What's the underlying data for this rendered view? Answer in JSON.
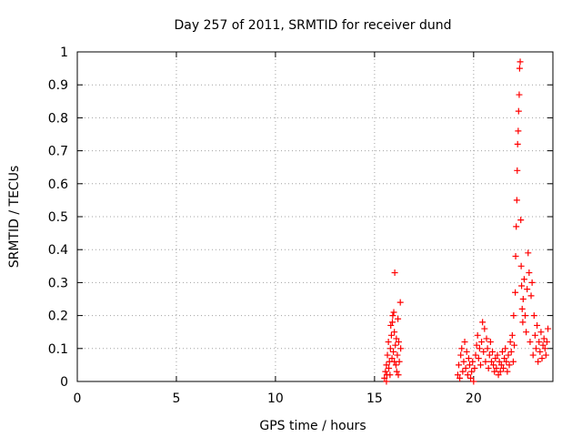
{
  "chart_data": {
    "type": "scatter",
    "title": "Day 257 of 2011, SRMTID for receiver dund",
    "xlabel": "GPS time / hours",
    "ylabel": "SRMTID / TECUs",
    "xlim": [
      0,
      24
    ],
    "ylim": [
      0,
      1
    ],
    "xticks": [
      0,
      5,
      10,
      15,
      20
    ],
    "xtick_labels": [
      "0",
      "5",
      "10",
      "15",
      "20"
    ],
    "yticks": [
      0,
      0.1,
      0.2,
      0.3,
      0.4,
      0.5,
      0.6,
      0.7,
      0.8,
      0.9,
      1
    ],
    "ytick_labels": [
      "0",
      "0.1",
      "0.2",
      "0.3",
      "0.4",
      "0.5",
      "0.6",
      "0.7",
      "0.8",
      "0.9",
      "1"
    ],
    "grid": true,
    "marker": "+",
    "color": "#ff0000",
    "series": [
      {
        "name": "SRMTID",
        "points": [
          [
            15.5,
            0.01
          ],
          [
            15.55,
            0.03
          ],
          [
            15.6,
            0.05
          ],
          [
            15.62,
            0.02
          ],
          [
            15.65,
            0.08
          ],
          [
            15.7,
            0.12
          ],
          [
            15.72,
            0.04
          ],
          [
            15.75,
            0.06
          ],
          [
            15.8,
            0.1
          ],
          [
            15.82,
            0.17
          ],
          [
            15.85,
            0.14
          ],
          [
            15.88,
            0.07
          ],
          [
            15.9,
            0.18
          ],
          [
            15.92,
            0.2
          ],
          [
            15.95,
            0.09
          ],
          [
            15.97,
            0.21
          ],
          [
            16.0,
            0.15
          ],
          [
            16.02,
            0.33
          ],
          [
            16.05,
            0.11
          ],
          [
            16.08,
            0.05
          ],
          [
            16.1,
            0.13
          ],
          [
            16.12,
            0.03
          ],
          [
            16.15,
            0.08
          ],
          [
            16.18,
            0.19
          ],
          [
            16.2,
            0.02
          ],
          [
            16.22,
            0.12
          ],
          [
            16.25,
            0.06
          ],
          [
            16.3,
            0.24
          ],
          [
            16.32,
            0.1
          ],
          [
            15.6,
            0.0
          ],
          [
            15.78,
            0.02
          ],
          [
            16.0,
            0.06
          ],
          [
            19.2,
            0.02
          ],
          [
            19.25,
            0.05
          ],
          [
            19.3,
            0.01
          ],
          [
            19.35,
            0.08
          ],
          [
            19.4,
            0.1
          ],
          [
            19.45,
            0.03
          ],
          [
            19.5,
            0.06
          ],
          [
            19.55,
            0.12
          ],
          [
            19.6,
            0.04
          ],
          [
            19.65,
            0.09
          ],
          [
            19.7,
            0.02
          ],
          [
            19.75,
            0.07
          ],
          [
            19.8,
            0.05
          ],
          [
            19.85,
            0.01
          ],
          [
            19.9,
            0.03
          ],
          [
            19.95,
            0.06
          ],
          [
            20.0,
            0.0
          ],
          [
            20.05,
            0.04
          ],
          [
            20.1,
            0.08
          ],
          [
            20.15,
            0.11
          ],
          [
            20.2,
            0.14
          ],
          [
            20.25,
            0.07
          ],
          [
            20.3,
            0.1
          ],
          [
            20.35,
            0.05
          ],
          [
            20.4,
            0.12
          ],
          [
            20.45,
            0.18
          ],
          [
            20.5,
            0.09
          ],
          [
            20.55,
            0.16
          ],
          [
            20.6,
            0.06
          ],
          [
            20.65,
            0.13
          ],
          [
            20.7,
            0.1
          ],
          [
            20.75,
            0.04
          ],
          [
            20.8,
            0.08
          ],
          [
            20.85,
            0.12
          ],
          [
            20.9,
            0.06
          ],
          [
            20.95,
            0.09
          ],
          [
            21.0,
            0.05
          ],
          [
            21.05,
            0.03
          ],
          [
            21.1,
            0.07
          ],
          [
            21.15,
            0.04
          ],
          [
            21.2,
            0.08
          ],
          [
            21.25,
            0.02
          ],
          [
            21.3,
            0.06
          ],
          [
            21.35,
            0.03
          ],
          [
            21.4,
            0.05
          ],
          [
            21.45,
            0.09
          ],
          [
            21.5,
            0.04
          ],
          [
            21.55,
            0.07
          ],
          [
            21.6,
            0.1
          ],
          [
            21.65,
            0.06
          ],
          [
            21.7,
            0.03
          ],
          [
            21.75,
            0.08
          ],
          [
            21.8,
            0.05
          ],
          [
            21.85,
            0.12
          ],
          [
            21.9,
            0.09
          ],
          [
            21.95,
            0.14
          ],
          [
            22.0,
            0.06
          ],
          [
            22.02,
            0.2
          ],
          [
            22.05,
            0.11
          ],
          [
            22.1,
            0.27
          ],
          [
            22.12,
            0.38
          ],
          [
            22.15,
            0.47
          ],
          [
            22.18,
            0.55
          ],
          [
            22.2,
            0.64
          ],
          [
            22.22,
            0.72
          ],
          [
            22.25,
            0.76
          ],
          [
            22.27,
            0.82
          ],
          [
            22.3,
            0.87
          ],
          [
            22.32,
            0.95
          ],
          [
            22.35,
            0.97
          ],
          [
            22.38,
            0.49
          ],
          [
            22.4,
            0.35
          ],
          [
            22.42,
            0.29
          ],
          [
            22.45,
            0.22
          ],
          [
            22.48,
            0.18
          ],
          [
            22.5,
            0.25
          ],
          [
            22.55,
            0.31
          ],
          [
            22.6,
            0.2
          ],
          [
            22.65,
            0.15
          ],
          [
            22.7,
            0.28
          ],
          [
            22.75,
            0.39
          ],
          [
            22.8,
            0.33
          ],
          [
            22.85,
            0.12
          ],
          [
            22.9,
            0.26
          ],
          [
            22.95,
            0.3
          ],
          [
            23.0,
            0.08
          ],
          [
            23.05,
            0.2
          ],
          [
            23.1,
            0.14
          ],
          [
            23.15,
            0.1
          ],
          [
            23.2,
            0.17
          ],
          [
            23.25,
            0.06
          ],
          [
            23.3,
            0.12
          ],
          [
            23.35,
            0.09
          ],
          [
            23.4,
            0.15
          ],
          [
            23.45,
            0.07
          ],
          [
            23.5,
            0.11
          ],
          [
            23.55,
            0.13
          ],
          [
            23.6,
            0.1
          ],
          [
            23.65,
            0.08
          ],
          [
            23.7,
            0.12
          ],
          [
            23.75,
            0.16
          ]
        ]
      }
    ]
  }
}
